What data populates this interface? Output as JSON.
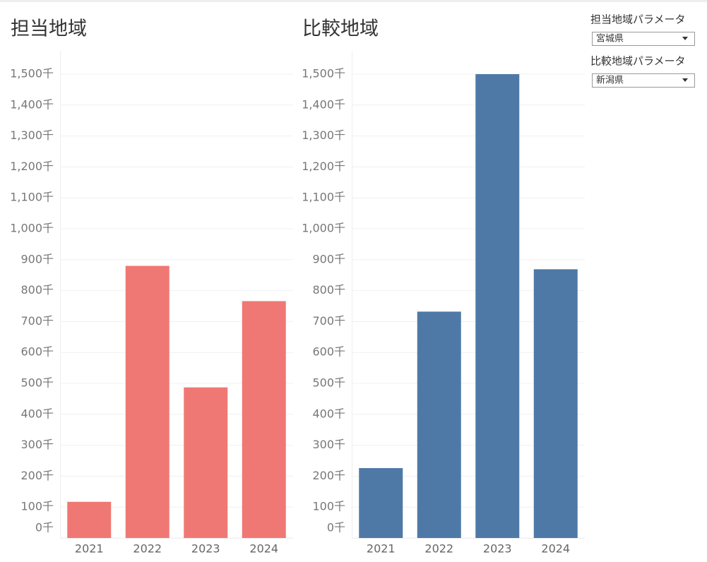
{
  "chart_data": [
    {
      "type": "bar",
      "title": "担当地域",
      "categories": [
        "2021",
        "2022",
        "2023",
        "2024"
      ],
      "values": [
        117,
        880,
        487,
        766
      ],
      "color": "#f07874",
      "ylim": [
        0,
        1500
      ],
      "yticks": [
        {
          "value": 0,
          "label": "0千"
        },
        {
          "value": 100,
          "label": "100千"
        },
        {
          "value": 200,
          "label": "200千"
        },
        {
          "value": 300,
          "label": "300千"
        },
        {
          "value": 400,
          "label": "400千"
        },
        {
          "value": 500,
          "label": "500千"
        },
        {
          "value": 600,
          "label": "600千"
        },
        {
          "value": 700,
          "label": "700千"
        },
        {
          "value": 800,
          "label": "800千"
        },
        {
          "value": 900,
          "label": "900千"
        },
        {
          "value": 1000,
          "label": "1,000千"
        },
        {
          "value": 1100,
          "label": "1,100千"
        },
        {
          "value": 1200,
          "label": "1,200千"
        },
        {
          "value": 1300,
          "label": "1,300千"
        },
        {
          "value": 1400,
          "label": "1,400千"
        },
        {
          "value": 1500,
          "label": "1,500千"
        }
      ],
      "grid": true
    },
    {
      "type": "bar",
      "title": "比較地域",
      "categories": [
        "2021",
        "2022",
        "2023",
        "2024"
      ],
      "values": [
        226,
        732,
        1500,
        869
      ],
      "color": "#4e79a7",
      "ylim": [
        0,
        1500
      ],
      "yticks": [
        {
          "value": 0,
          "label": "0千"
        },
        {
          "value": 100,
          "label": "100千"
        },
        {
          "value": 200,
          "label": "200千"
        },
        {
          "value": 300,
          "label": "300千"
        },
        {
          "value": 400,
          "label": "400千"
        },
        {
          "value": 500,
          "label": "500千"
        },
        {
          "value": 600,
          "label": "600千"
        },
        {
          "value": 700,
          "label": "700千"
        },
        {
          "value": 800,
          "label": "800千"
        },
        {
          "value": 900,
          "label": "900千"
        },
        {
          "value": 1000,
          "label": "1,000千"
        },
        {
          "value": 1100,
          "label": "1,100千"
        },
        {
          "value": 1200,
          "label": "1,200千"
        },
        {
          "value": 1300,
          "label": "1,300千"
        },
        {
          "value": 1400,
          "label": "1,400千"
        },
        {
          "value": 1500,
          "label": "1,500千"
        }
      ],
      "grid": true
    }
  ],
  "controls": [
    {
      "label": "担当地域パラメータ",
      "value": "宮城県"
    },
    {
      "label": "比較地域パラメータ",
      "value": "新潟県"
    }
  ]
}
